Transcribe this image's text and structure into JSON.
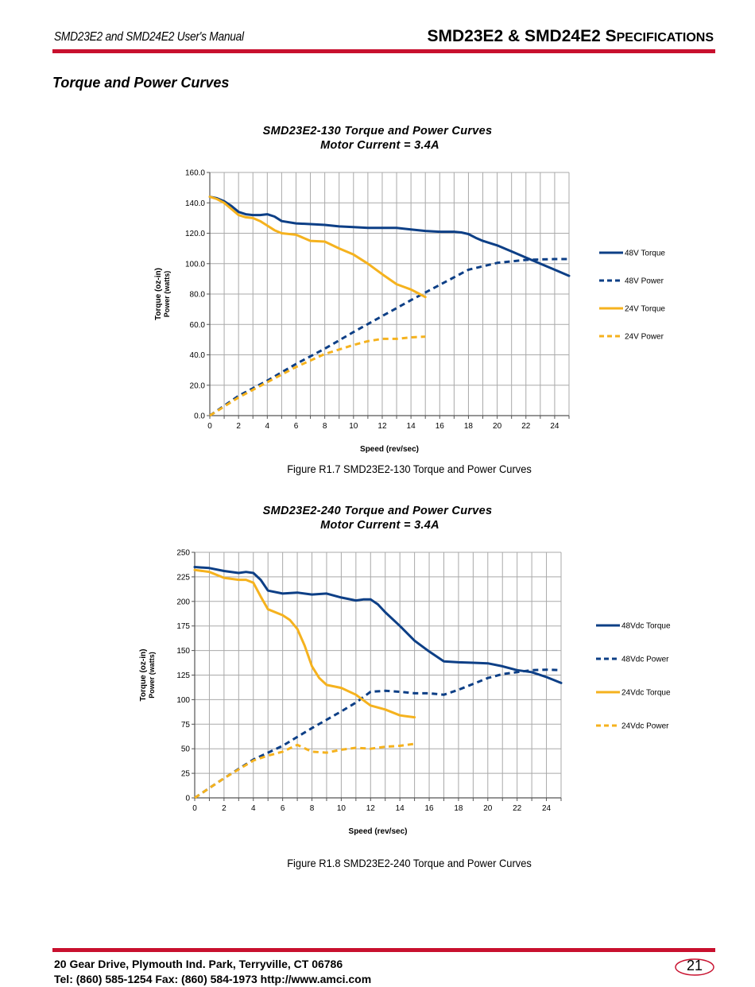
{
  "header": {
    "left": "SMD23E2 and SMD24E2 User's Manual",
    "right_main": "SMD23E2 & SMD24E2 S",
    "right_small": "PECIFICATIONS"
  },
  "section_title": "Torque and Power Curves",
  "figures": [
    {
      "title_line1": "SMD23E2-130 Torque and Power Curves",
      "title_line2": "Motor Current = 3.4A",
      "caption": "Figure R1.7  SMD23E2-130 Torque and Power Curves"
    },
    {
      "title_line1": "SMD23E2-240 Torque and Power Curves",
      "title_line2": "Motor Current = 3.4A",
      "caption": "Figure R1.8  SMD23E2-240 Torque and Power Curves"
    }
  ],
  "chart_data": [
    {
      "type": "line",
      "title": "SMD23E2-130 Torque and Power Curves",
      "subtitle": "Motor Current = 3.4A",
      "xlabel": "Speed (rev/sec)",
      "ylabel_line1": "Torque  (oz-in)",
      "ylabel_line2": "Power (watts)",
      "xlim": [
        0,
        25
      ],
      "ylim": [
        0,
        160
      ],
      "xticks": [
        0,
        2,
        4,
        6,
        8,
        10,
        12,
        14,
        16,
        18,
        20,
        22,
        24
      ],
      "yticks": [
        0,
        20,
        40,
        60,
        80,
        100,
        120,
        140,
        160
      ],
      "ytick_labels": [
        "0.0",
        "20.0",
        "40.0",
        "60.0",
        "80.0",
        "100.0",
        "120.0",
        "140.0",
        "160.0"
      ],
      "grid": true,
      "legend_position": "right",
      "series": [
        {
          "name": "48V Torque",
          "color": "#0d3f86",
          "dashed": false,
          "x": [
            0,
            0.5,
            1,
            1.5,
            2,
            2.5,
            3,
            3.5,
            4,
            4.5,
            5,
            6,
            7,
            8,
            9,
            10,
            11,
            12,
            13,
            14,
            15,
            16,
            17,
            17.5,
            18,
            18.5,
            19,
            20,
            21,
            22,
            23,
            24,
            25
          ],
          "y": [
            144,
            143,
            141,
            138,
            134,
            132.5,
            132,
            132,
            132.5,
            131,
            128,
            126.5,
            126,
            125.5,
            124.5,
            124,
            123.5,
            123.5,
            123.5,
            122.5,
            121.5,
            121,
            121,
            120.5,
            119.5,
            117,
            115,
            112,
            108,
            104,
            100,
            96,
            92
          ]
        },
        {
          "name": "48V Power",
          "color": "#0d3f86",
          "dashed": true,
          "x": [
            0,
            2,
            4,
            6,
            8,
            10,
            12,
            14,
            16,
            18,
            20,
            22,
            24,
            25
          ],
          "y": [
            0,
            13,
            23,
            34,
            44,
            55,
            65.5,
            76,
            86,
            96,
            100.5,
            102.5,
            103,
            103
          ]
        },
        {
          "name": "24V Torque",
          "color": "#f5b21e",
          "dashed": false,
          "x": [
            0,
            0.5,
            1,
            1.5,
            2,
            2.5,
            3,
            3.5,
            4,
            4.5,
            5,
            6,
            7,
            8,
            9,
            10,
            11,
            12,
            13,
            14,
            14.5,
            15
          ],
          "y": [
            144,
            142.5,
            140,
            136,
            132,
            130.5,
            130,
            128,
            125,
            122,
            120,
            119,
            115,
            114.5,
            110,
            106,
            100,
            93,
            86.5,
            83,
            80.5,
            78
          ]
        },
        {
          "name": "24V Power",
          "color": "#f5b21e",
          "dashed": true,
          "x": [
            0,
            2,
            4,
            6,
            8,
            10,
            11,
            12,
            13,
            14,
            15
          ],
          "y": [
            0,
            12,
            22,
            32,
            40.5,
            46.5,
            49,
            50.5,
            50.5,
            51.5,
            52
          ]
        }
      ]
    },
    {
      "type": "line",
      "title": "SMD23E2-240 Torque and Power Curves",
      "subtitle": "Motor Current = 3.4A",
      "xlabel": "Speed (rev/sec)",
      "ylabel_line1": "Torque  (oz-in)",
      "ylabel_line2": "Power (watts)",
      "xlim": [
        0,
        25
      ],
      "ylim": [
        0,
        250
      ],
      "xticks": [
        0,
        2,
        4,
        6,
        8,
        10,
        12,
        14,
        16,
        18,
        20,
        22,
        24
      ],
      "yticks": [
        0,
        25,
        50,
        75,
        100,
        125,
        150,
        175,
        200,
        225,
        250
      ],
      "ytick_labels": [
        "0",
        "25",
        "50",
        "75",
        "100",
        "125",
        "150",
        "175",
        "200",
        "225",
        "250"
      ],
      "grid": true,
      "legend_position": "right",
      "series": [
        {
          "name": "48Vdc Torque",
          "color": "#0d3f86",
          "dashed": false,
          "x": [
            0,
            1,
            2,
            3,
            3.5,
            4,
            4.5,
            5,
            6,
            7,
            8,
            9,
            10,
            11,
            11.5,
            12,
            12.5,
            13,
            14,
            15,
            16,
            17,
            18,
            19,
            20,
            21,
            22,
            23,
            24,
            25
          ],
          "y": [
            235,
            234,
            231,
            229,
            230,
            229,
            222,
            211,
            208,
            209,
            207,
            208,
            204,
            201,
            202,
            202,
            197,
            189,
            175,
            160,
            149,
            139,
            138,
            137.5,
            137,
            134,
            130,
            128,
            123,
            117
          ]
        },
        {
          "name": "48Vdc Power",
          "color": "#0d3f86",
          "dashed": true,
          "x": [
            0,
            2,
            4,
            6,
            8,
            10,
            11,
            12,
            13,
            14,
            15,
            16,
            17,
            18,
            19,
            20,
            21,
            22,
            23,
            24,
            25
          ],
          "y": [
            0,
            20,
            39,
            53,
            71,
            88,
            97,
            108,
            109,
            108,
            106.5,
            106.5,
            105,
            110,
            116,
            122,
            126,
            128,
            130,
            130.5,
            130
          ]
        },
        {
          "name": "24Vdc Torque",
          "color": "#f5b21e",
          "dashed": false,
          "x": [
            0,
            1,
            2,
            3,
            3.5,
            4,
            4.5,
            5,
            6,
            6.5,
            7,
            7.5,
            8,
            8.5,
            9,
            10,
            11,
            12,
            13,
            14,
            15
          ],
          "y": [
            232,
            230,
            224,
            222,
            222,
            219,
            205,
            192,
            186,
            181,
            172,
            155,
            134,
            122,
            115,
            112,
            105,
            94,
            90,
            84,
            82
          ]
        },
        {
          "name": "24Vdc Power",
          "color": "#f5b21e",
          "dashed": true,
          "x": [
            0,
            2,
            4,
            5,
            6,
            7,
            8,
            9,
            10,
            11,
            12,
            13,
            14,
            15
          ],
          "y": [
            0,
            20,
            38,
            43,
            47,
            54,
            47,
            46,
            49,
            51,
            50,
            52,
            53,
            55
          ]
        }
      ]
    }
  ],
  "footer": {
    "line1": "20 Gear Drive, Plymouth Ind. Park, Terryville, CT 06786",
    "line2": "Tel: (860) 585-1254  Fax: (860) 584-1973  http://www.amci.com",
    "page_number": "21"
  },
  "colors": {
    "accent_red": "#c8102e",
    "navy": "#0d3f86",
    "gold": "#f5b21e"
  }
}
